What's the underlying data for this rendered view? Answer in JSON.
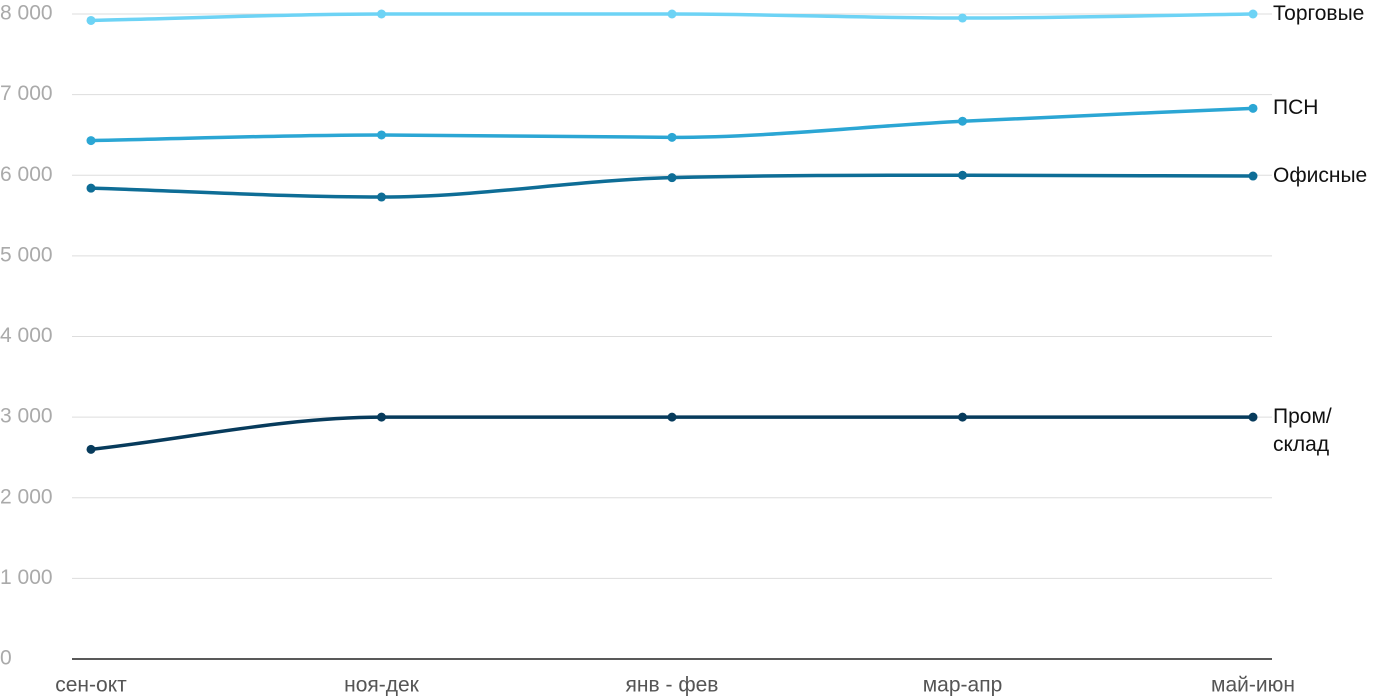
{
  "chart_data": {
    "type": "line",
    "categories": [
      "сен-окт",
      "ноя-дек",
      "янв - фев",
      "мар-апр",
      "май-июн"
    ],
    "series": [
      {
        "name": "Торговые",
        "color": "#6dd3f5",
        "values": [
          7920,
          8000,
          8000,
          7950,
          8000
        ]
      },
      {
        "name": "ПСН",
        "color": "#2ba6d4",
        "values": [
          6430,
          6500,
          6470,
          6670,
          6830
        ]
      },
      {
        "name": "Офисные",
        "color": "#0e6d96",
        "values": [
          5840,
          5730,
          5970,
          6000,
          5990
        ]
      },
      {
        "name": "Пром/\nсклад",
        "color": "#073b5c",
        "values": [
          2600,
          3000,
          3000,
          3000,
          3000
        ]
      }
    ],
    "ylim": [
      0,
      8000
    ],
    "yticks": [
      0,
      {
        "value": 1000,
        "label": "1 000"
      },
      {
        "value": 2000,
        "label": "2 000"
      },
      {
        "value": 3000,
        "label": "3 000"
      },
      {
        "value": 4000,
        "label": "4 000"
      },
      {
        "value": 5000,
        "label": "5 000"
      },
      {
        "value": 6000,
        "label": "6 000"
      },
      {
        "value": 7000,
        "label": "7 000"
      },
      {
        "value": 8000,
        "label": "8 000"
      }
    ],
    "grid": true
  }
}
